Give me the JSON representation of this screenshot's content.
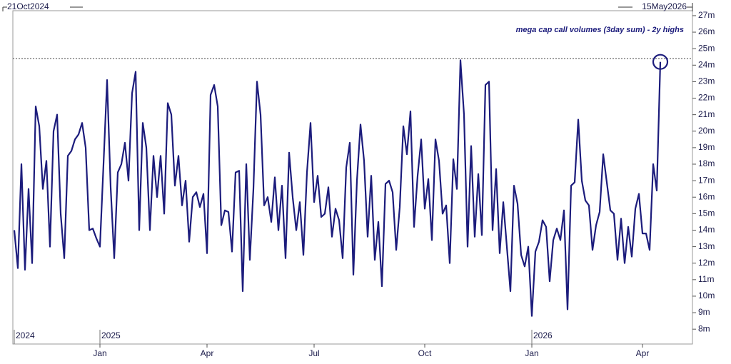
{
  "chart_data": {
    "type": "line",
    "start_label": "21Oct2024",
    "end_label": "15May2026",
    "annotation": "mega cap call volumes (3day sum) - 2y highs",
    "year_labels": [
      "2024",
      "2025",
      "2026"
    ],
    "categories": [
      null,
      null,
      null,
      null,
      null,
      null,
      null,
      null,
      null,
      null,
      null,
      null,
      null,
      null,
      null,
      null,
      null,
      null,
      null,
      null,
      null,
      null,
      null,
      null,
      "Jan",
      null,
      null,
      null,
      null,
      null,
      null,
      null,
      null,
      null,
      null,
      null,
      null,
      null,
      null,
      null,
      null,
      null,
      null,
      null,
      null,
      null,
      null,
      null,
      null,
      null,
      null,
      null,
      null,
      null,
      "Apr",
      null,
      null,
      null,
      null,
      null,
      null,
      null,
      null,
      null,
      null,
      null,
      null,
      null,
      null,
      null,
      null,
      null,
      null,
      null,
      null,
      null,
      null,
      null,
      null,
      null,
      null,
      null,
      null,
      null,
      "Jul",
      null,
      null,
      null,
      null,
      null,
      null,
      null,
      null,
      null,
      null,
      null,
      null,
      null,
      null,
      null,
      null,
      null,
      null,
      null,
      null,
      null,
      null,
      null,
      null,
      null,
      null,
      null,
      null,
      null,
      null,
      "Oct",
      null,
      null,
      null,
      null,
      null,
      null,
      null,
      null,
      null,
      null,
      null,
      null,
      null,
      null,
      null,
      null,
      null,
      null,
      null,
      null,
      null,
      null,
      null,
      null,
      null,
      null,
      null,
      null,
      null,
      "Jan",
      null,
      null,
      null,
      null,
      null,
      null,
      null,
      null,
      null,
      null,
      null,
      null,
      null,
      null,
      null,
      null,
      null,
      null,
      null,
      null,
      null,
      null,
      null,
      null,
      null,
      null,
      null,
      null,
      null,
      null,
      "Apr",
      null,
      null,
      null,
      null,
      null
    ],
    "series": [
      {
        "color": "#1c1c7c",
        "values": [
          14,
          11.7,
          18,
          11.6,
          16.5,
          12,
          21.5,
          20.3,
          16.5,
          18.2,
          13,
          20,
          21,
          15,
          12.3,
          18.5,
          18.8,
          19.5,
          19.8,
          20.5,
          19,
          14,
          14.1,
          13.5,
          13,
          18,
          23.1,
          16.6,
          12.3,
          17.5,
          18,
          19.3,
          17,
          22.3,
          23.6,
          14,
          20.5,
          19,
          14,
          18.5,
          16,
          18.5,
          15,
          21.7,
          21,
          16.7,
          18.5,
          15.5,
          17,
          13.3,
          16,
          16.3,
          15.4,
          16.2,
          12.6,
          22.2,
          22.8,
          21.5,
          14.3,
          15.2,
          15.1,
          12.7,
          17.5,
          17.6,
          10.3,
          18,
          12.2,
          16.5,
          23,
          21,
          15.5,
          16,
          14.5,
          17.2,
          14,
          16.7,
          12.3,
          18.7,
          16,
          14,
          15.7,
          12.5,
          17.5,
          20.5,
          15.7,
          17.3,
          14.8,
          15,
          16.6,
          13.6,
          15.3,
          14.6,
          12.3,
          17.8,
          19.3,
          11.3,
          17,
          20.4,
          18.2,
          13.6,
          17.3,
          12.2,
          14.5,
          10.6,
          16.8,
          17,
          16.3,
          12.8,
          15.4,
          20.3,
          18.6,
          21.2,
          14.2,
          17.3,
          19.5,
          15.3,
          17.1,
          13.4,
          19.5,
          18.2,
          15,
          15.5,
          12,
          18.3,
          16.5,
          24.3,
          21,
          13,
          19.1,
          13.6,
          17.4,
          13.7,
          22.8,
          23,
          14,
          17.7,
          12.6,
          15.7,
          13,
          10.3,
          16.7,
          15.6,
          12.5,
          11.8,
          13,
          8.8,
          12.7,
          13.3,
          14.6,
          14.2,
          10.9,
          13.4,
          14.1,
          13.4,
          15.2,
          9.2,
          16.7,
          16.9,
          20.7,
          17,
          15.8,
          15.5,
          12.8,
          14.3,
          15.1,
          18.6,
          16.9,
          15.2,
          15,
          12.2,
          14.7,
          12,
          14.2,
          12.4,
          15.3,
          16.2,
          13.8,
          13.8,
          12.8,
          18,
          16.4,
          24.2
        ]
      }
    ],
    "reference_line": 24.4,
    "ylim": [
      7.1,
      27.3
    ],
    "yticks": [
      {
        "value": 8,
        "label": "8m"
      },
      {
        "value": 9,
        "label": "9m"
      },
      {
        "value": 10,
        "label": "10m"
      },
      {
        "value": 11,
        "label": "11m"
      },
      {
        "value": 12,
        "label": "12m"
      },
      {
        "value": 13,
        "label": "13m"
      },
      {
        "value": 14,
        "label": "14m"
      },
      {
        "value": 15,
        "label": "15m"
      },
      {
        "value": 16,
        "label": "16m"
      },
      {
        "value": 17,
        "label": "17m"
      },
      {
        "value": 18,
        "label": "18m"
      },
      {
        "value": 19,
        "label": "19m"
      },
      {
        "value": 20,
        "label": "20m"
      },
      {
        "value": 21,
        "label": "21m"
      },
      {
        "value": 22,
        "label": "22m"
      },
      {
        "value": 23,
        "label": "23m"
      },
      {
        "value": 24,
        "label": "24m"
      },
      {
        "value": 25,
        "label": "25m"
      },
      {
        "value": 26,
        "label": "26m"
      },
      {
        "value": 27,
        "label": "27m"
      }
    ],
    "grid": false
  }
}
